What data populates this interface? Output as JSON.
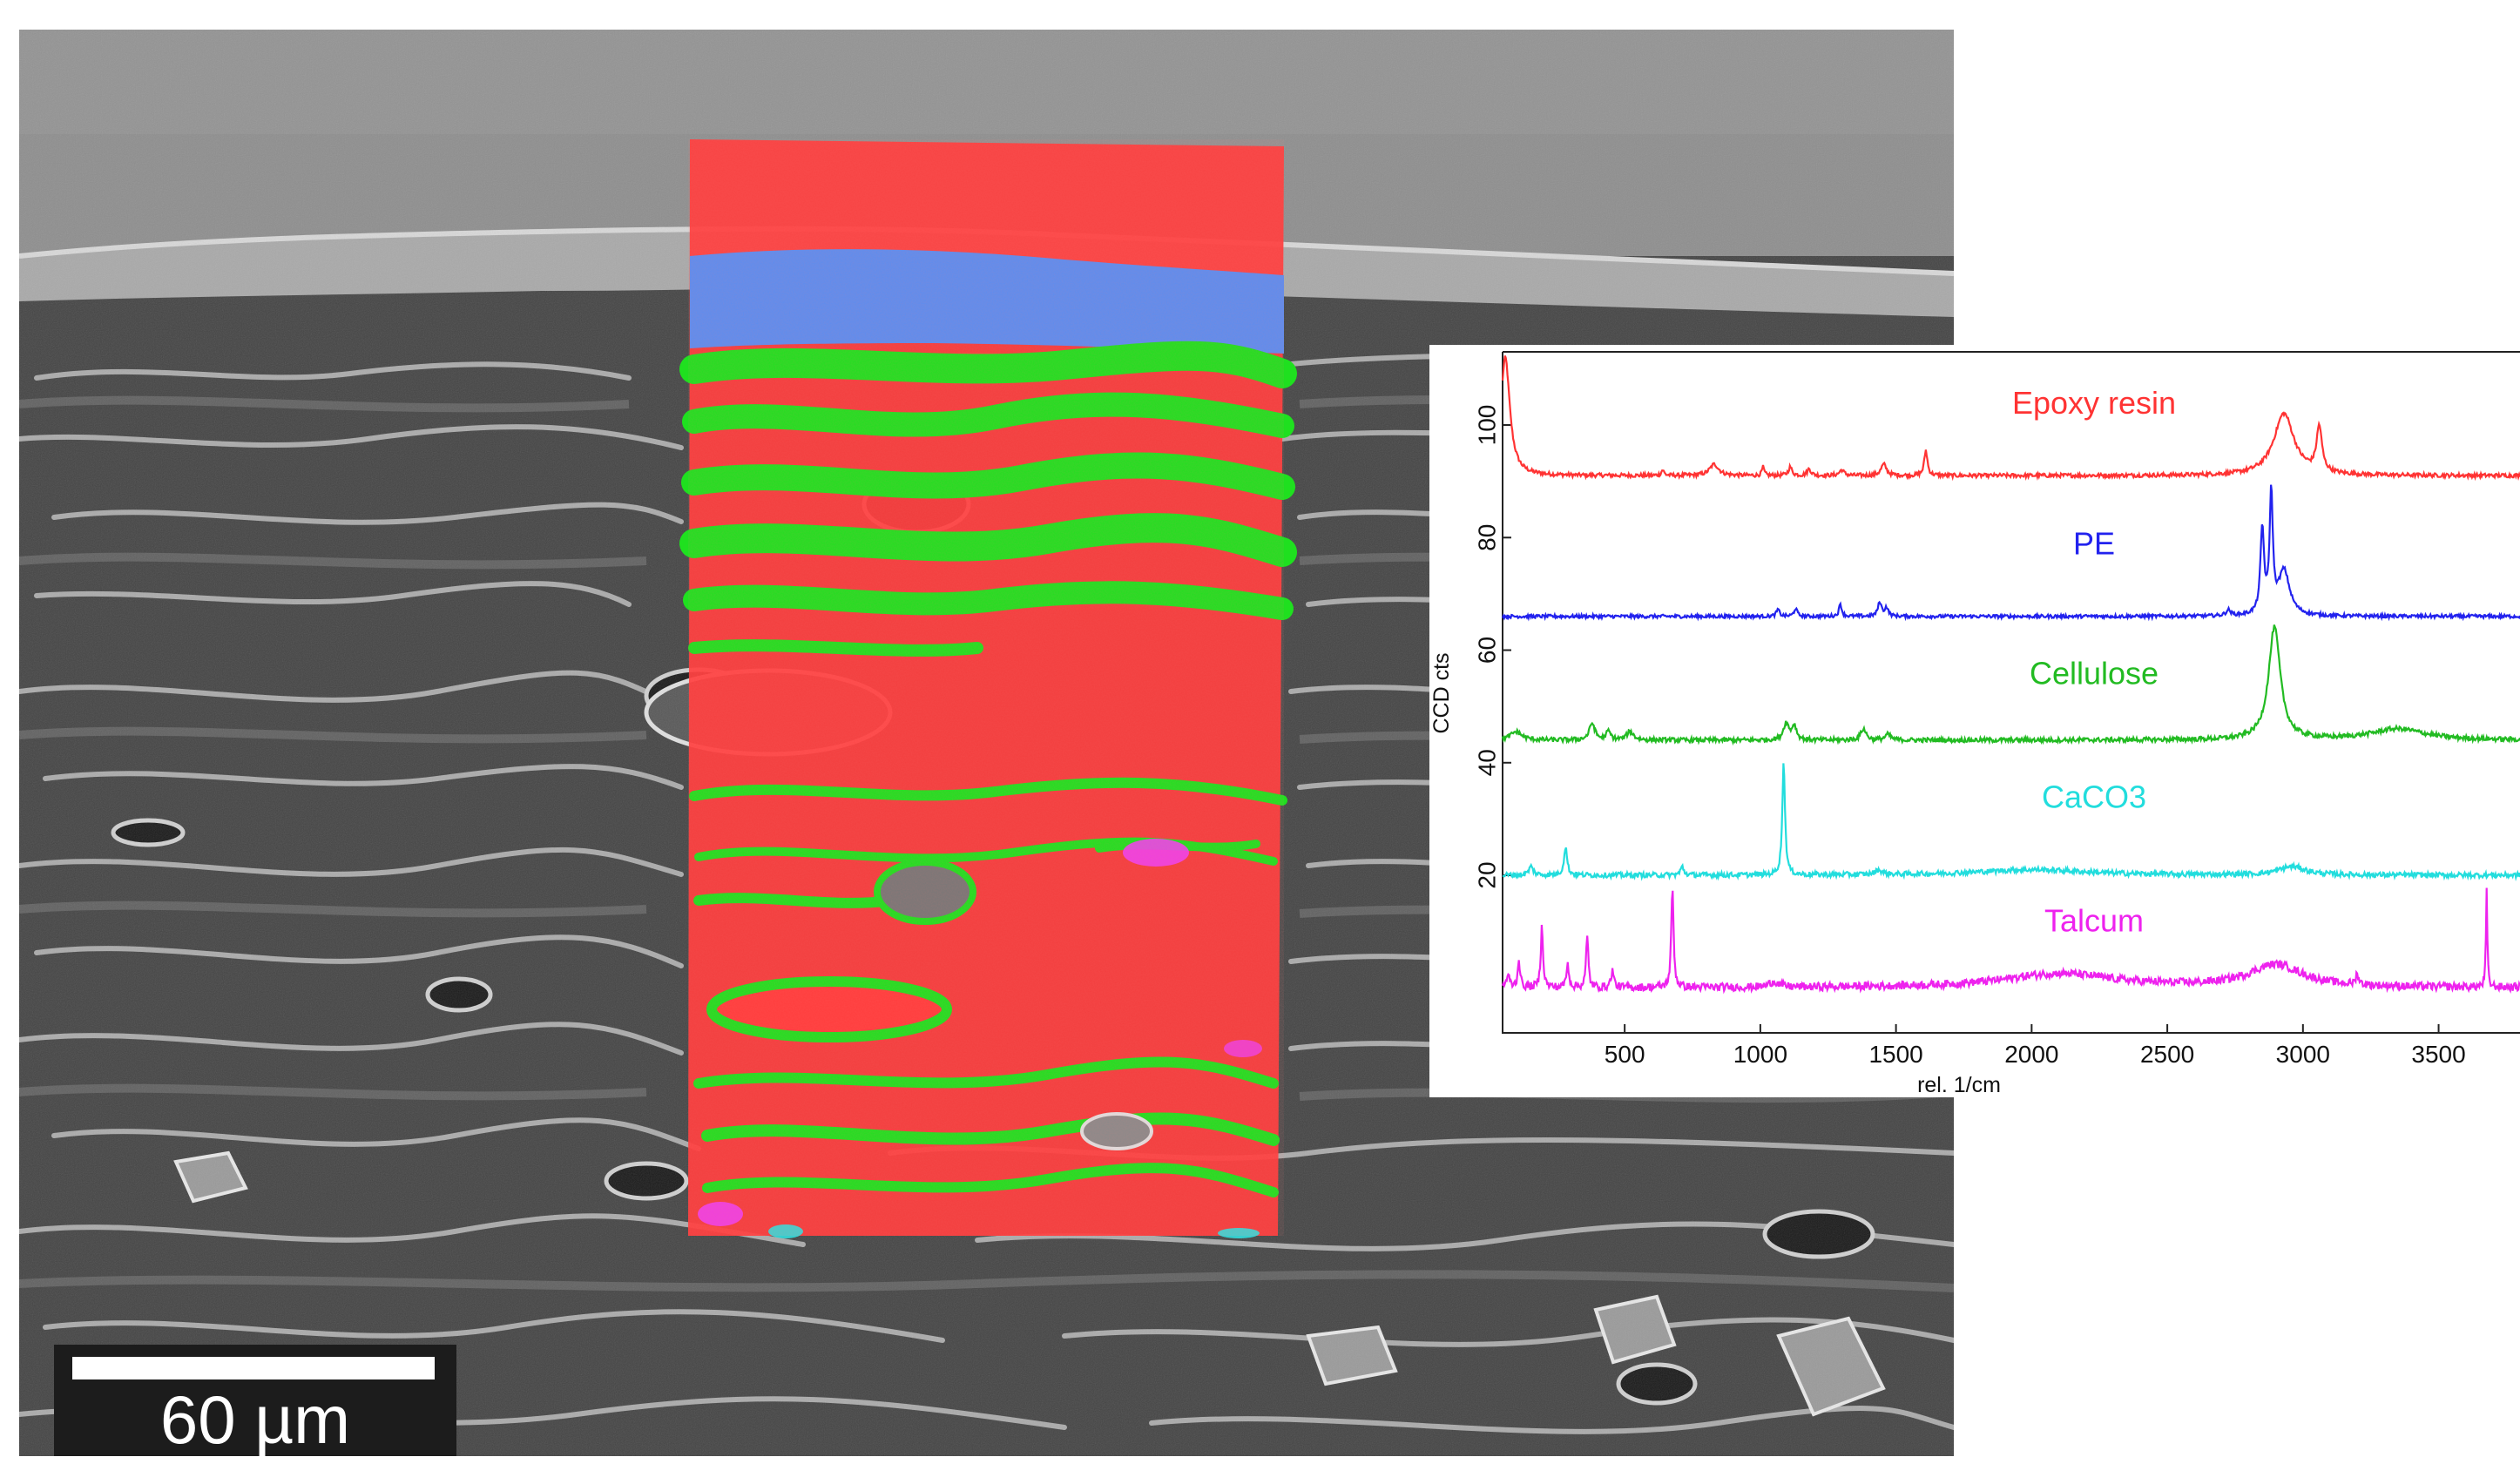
{
  "image": {
    "kind": "SEM cross-section with overlaid Raman chemical map and Raman spectra",
    "scale_bar_label": "60 µm",
    "map_colors": {
      "epoxy_resin": "#ff3a3a",
      "pe": "#5a8cff",
      "cellulose": "#22dd22",
      "caco3": "#33dddd",
      "talcum": "#ee33ee"
    }
  },
  "chart_data": {
    "type": "line",
    "title": "",
    "xlabel": "rel. 1/cm",
    "ylabel": "CCD cts",
    "xlim": [
      50,
      3800
    ],
    "ylim": [
      -8,
      113
    ],
    "xticks": [
      500,
      1000,
      1500,
      2000,
      2500,
      3000,
      3500
    ],
    "yticks": [
      20,
      40,
      60,
      80,
      100
    ],
    "grid": false,
    "legend": "inline labels above each spectrum",
    "series": [
      {
        "name": "Epoxy resin",
        "color": "#ff3333",
        "baseline": 91,
        "peaks": [
          [
            60,
            21,
            20
          ],
          [
            640,
            1,
            6
          ],
          [
            830,
            2,
            20
          ],
          [
            1010,
            1.5,
            5
          ],
          [
            1110,
            1.5,
            8
          ],
          [
            1180,
            1.2,
            8
          ],
          [
            1300,
            1,
            10
          ],
          [
            1455,
            2,
            12
          ],
          [
            1610,
            4.5,
            7
          ],
          [
            2930,
            11,
            45
          ],
          [
            3060,
            8,
            12
          ]
        ],
        "noise": 0.35
      },
      {
        "name": "PE",
        "color": "#2222ee",
        "baseline": 66,
        "peaks": [
          [
            1065,
            1.2,
            7
          ],
          [
            1130,
            1.4,
            7
          ],
          [
            1295,
            2.2,
            6
          ],
          [
            1440,
            2.5,
            8
          ],
          [
            1465,
            1.5,
            8
          ],
          [
            2725,
            1,
            10
          ],
          [
            2850,
            15,
            8
          ],
          [
            2883,
            21,
            7
          ],
          [
            2930,
            8,
            25
          ]
        ],
        "noise": 0.3
      },
      {
        "name": "Cellulose",
        "color": "#22bb22",
        "baseline": 44,
        "peaks": [
          [
            100,
            1.5,
            25
          ],
          [
            380,
            3,
            12
          ],
          [
            440,
            1.5,
            10
          ],
          [
            520,
            1.5,
            15
          ],
          [
            1095,
            3,
            12
          ],
          [
            1125,
            2.5,
            10
          ],
          [
            1380,
            2,
            12
          ],
          [
            1470,
            1,
            12
          ],
          [
            2895,
            20,
            26
          ],
          [
            3350,
            2,
            120
          ]
        ],
        "noise": 0.4
      },
      {
        "name": "CaCO3",
        "color": "#22dddd",
        "baseline": 20,
        "peaks": [
          [
            155,
            1.5,
            10
          ],
          [
            282,
            5,
            7
          ],
          [
            712,
            1.5,
            7
          ],
          [
            1086,
            20,
            6
          ],
          [
            1436,
            0.8,
            15
          ],
          [
            2000,
            1,
            250
          ],
          [
            2960,
            1.5,
            60
          ]
        ],
        "noise": 0.45
      },
      {
        "name": "Talcum",
        "color": "#ee22ee",
        "baseline": 0,
        "peaks": [
          [
            70,
            2,
            8
          ],
          [
            110,
            5,
            5
          ],
          [
            195,
            11,
            5
          ],
          [
            290,
            4,
            6
          ],
          [
            362,
            9,
            5
          ],
          [
            455,
            3,
            6
          ],
          [
            676,
            18,
            5
          ],
          [
            1050,
            1,
            20
          ],
          [
            2100,
            2.5,
            250
          ],
          [
            2900,
            4,
            120
          ],
          [
            3200,
            2,
            6
          ],
          [
            3677,
            17,
            3
          ]
        ],
        "noise": 0.7
      }
    ]
  }
}
